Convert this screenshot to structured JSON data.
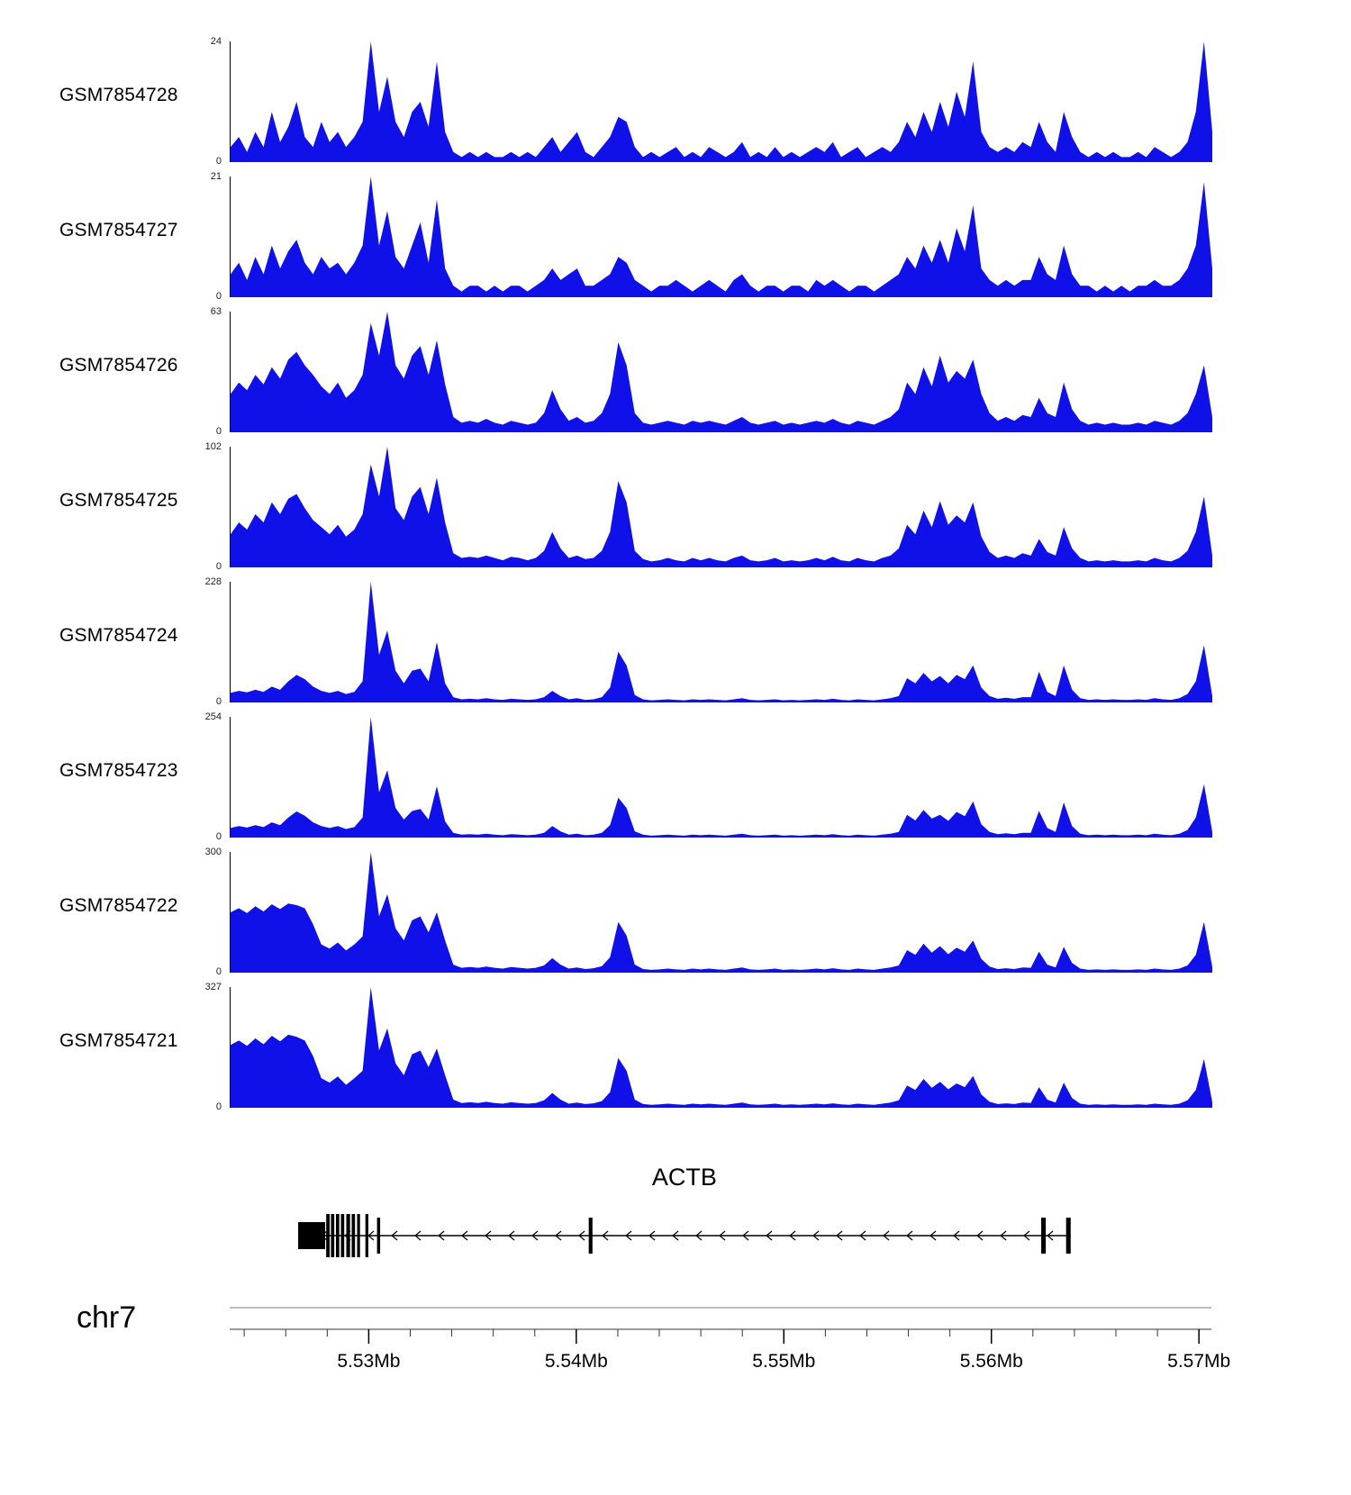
{
  "chart_data": {
    "type": "area",
    "title": "",
    "description": "Genome browser coverage tracks over the ACTB locus on chr7",
    "signal_color": "#1010e8",
    "region": {
      "chrom": "chr7",
      "start_mb": 5.5233,
      "end_mb": 5.5706
    },
    "x_axis": {
      "tick_labels": [
        "5.53Mb",
        "5.54Mb",
        "5.55Mb",
        "5.56Mb",
        "5.57Mb"
      ],
      "tick_positions_mb": [
        5.53,
        5.54,
        5.55,
        5.56,
        5.57
      ],
      "minor_tick_interval_mb": 0.002
    },
    "tracks": [
      {
        "label": "GSM7854728",
        "ymin_label": "0",
        "ymax": 24,
        "values": [
          3,
          5,
          2,
          6,
          3,
          10,
          4,
          7,
          12,
          5,
          3,
          8,
          4,
          6,
          3,
          5,
          8,
          24,
          10,
          17,
          8,
          5,
          10,
          12,
          7,
          20,
          6,
          2,
          1,
          2,
          1,
          2,
          1,
          1,
          2,
          1,
          2,
          1,
          3,
          5,
          2,
          4,
          6,
          2,
          1,
          3,
          5,
          9,
          8,
          3,
          1,
          2,
          1,
          2,
          3,
          1,
          2,
          1,
          3,
          2,
          1,
          2,
          4,
          1,
          2,
          1,
          3,
          1,
          2,
          1,
          2,
          3,
          2,
          4,
          1,
          2,
          3,
          1,
          2,
          3,
          2,
          4,
          8,
          5,
          10,
          6,
          12,
          7,
          14,
          9,
          20,
          6,
          3,
          2,
          3,
          2,
          4,
          3,
          8,
          4,
          2,
          10,
          5,
          2,
          1,
          2,
          1,
          2,
          1,
          1,
          2,
          1,
          3,
          2,
          1,
          2,
          4,
          10,
          24,
          6
        ]
      },
      {
        "label": "GSM7854727",
        "ymin_label": "0",
        "ymax": 21,
        "values": [
          4,
          6,
          3,
          7,
          4,
          9,
          5,
          8,
          10,
          6,
          4,
          7,
          5,
          6,
          4,
          6,
          9,
          21,
          9,
          15,
          7,
          5,
          9,
          13,
          6,
          17,
          5,
          2,
          1,
          2,
          2,
          1,
          2,
          1,
          2,
          2,
          1,
          2,
          3,
          5,
          3,
          4,
          5,
          2,
          2,
          3,
          4,
          7,
          6,
          3,
          2,
          1,
          2,
          2,
          3,
          2,
          1,
          2,
          3,
          2,
          1,
          3,
          4,
          2,
          1,
          2,
          2,
          1,
          2,
          2,
          1,
          3,
          2,
          3,
          2,
          1,
          2,
          2,
          1,
          2,
          3,
          4,
          7,
          5,
          9,
          6,
          10,
          6,
          12,
          8,
          16,
          5,
          3,
          2,
          3,
          2,
          3,
          3,
          7,
          4,
          3,
          9,
          4,
          2,
          2,
          1,
          2,
          1,
          2,
          1,
          2,
          2,
          3,
          2,
          2,
          3,
          5,
          9,
          20,
          5
        ]
      },
      {
        "label": "GSM7854726",
        "ymin_label": "0",
        "ymax": 63,
        "values": [
          20,
          26,
          22,
          30,
          25,
          34,
          28,
          38,
          42,
          35,
          30,
          24,
          20,
          26,
          18,
          22,
          30,
          57,
          40,
          63,
          35,
          28,
          40,
          45,
          30,
          48,
          25,
          8,
          5,
          6,
          5,
          7,
          5,
          4,
          6,
          5,
          4,
          5,
          10,
          22,
          12,
          6,
          8,
          5,
          6,
          10,
          20,
          47,
          35,
          10,
          5,
          4,
          5,
          6,
          5,
          4,
          6,
          5,
          6,
          5,
          4,
          6,
          8,
          5,
          4,
          5,
          6,
          4,
          5,
          4,
          5,
          6,
          5,
          7,
          5,
          4,
          6,
          5,
          4,
          6,
          8,
          12,
          26,
          20,
          34,
          24,
          40,
          26,
          32,
          28,
          38,
          20,
          10,
          6,
          8,
          6,
          9,
          8,
          18,
          10,
          8,
          26,
          12,
          6,
          4,
          5,
          4,
          5,
          4,
          4,
          5,
          4,
          6,
          5,
          4,
          6,
          10,
          20,
          35,
          8
        ]
      },
      {
        "label": "GSM7854725",
        "ymin_label": "0",
        "ymax": 102,
        "values": [
          28,
          38,
          32,
          45,
          38,
          55,
          45,
          58,
          62,
          50,
          40,
          34,
          28,
          36,
          26,
          32,
          45,
          87,
          60,
          102,
          50,
          40,
          60,
          68,
          45,
          76,
          38,
          12,
          8,
          9,
          8,
          10,
          8,
          6,
          9,
          8,
          6,
          8,
          14,
          30,
          16,
          8,
          10,
          7,
          8,
          14,
          30,
          73,
          55,
          14,
          7,
          5,
          6,
          8,
          6,
          5,
          8,
          6,
          8,
          6,
          5,
          8,
          10,
          6,
          5,
          6,
          8,
          5,
          6,
          5,
          6,
          8,
          6,
          9,
          6,
          5,
          8,
          6,
          5,
          8,
          10,
          16,
          36,
          28,
          48,
          34,
          56,
          36,
          44,
          38,
          55,
          26,
          13,
          8,
          10,
          8,
          12,
          10,
          24,
          13,
          10,
          34,
          16,
          8,
          5,
          6,
          5,
          6,
          5,
          5,
          6,
          5,
          8,
          6,
          5,
          8,
          14,
          30,
          60,
          10
        ]
      },
      {
        "label": "GSM7854724",
        "ymin_label": "0",
        "ymax": 228,
        "values": [
          18,
          22,
          19,
          24,
          20,
          30,
          24,
          40,
          52,
          44,
          30,
          22,
          18,
          22,
          16,
          20,
          40,
          228,
          90,
          136,
          60,
          36,
          60,
          64,
          40,
          114,
          36,
          10,
          6,
          7,
          6,
          8,
          6,
          5,
          7,
          6,
          5,
          6,
          10,
          22,
          12,
          6,
          8,
          5,
          6,
          10,
          28,
          96,
          70,
          14,
          6,
          4,
          5,
          6,
          5,
          4,
          6,
          5,
          6,
          5,
          4,
          6,
          8,
          5,
          4,
          5,
          6,
          4,
          5,
          4,
          5,
          6,
          5,
          7,
          5,
          4,
          6,
          5,
          4,
          6,
          8,
          12,
          46,
          36,
          56,
          40,
          50,
          36,
          52,
          44,
          70,
          28,
          12,
          7,
          9,
          7,
          10,
          10,
          58,
          20,
          12,
          70,
          24,
          8,
          5,
          6,
          5,
          6,
          5,
          5,
          6,
          5,
          8,
          6,
          5,
          8,
          16,
          40,
          108,
          12
        ]
      },
      {
        "label": "GSM7854723",
        "ymin_label": "0",
        "ymax": 254,
        "values": [
          20,
          24,
          21,
          26,
          22,
          32,
          26,
          42,
          55,
          46,
          32,
          24,
          20,
          24,
          18,
          22,
          42,
          254,
          95,
          142,
          62,
          38,
          56,
          60,
          38,
          108,
          34,
          10,
          6,
          7,
          6,
          8,
          6,
          5,
          7,
          6,
          5,
          6,
          10,
          24,
          13,
          6,
          8,
          5,
          6,
          10,
          26,
          84,
          62,
          13,
          6,
          4,
          5,
          6,
          5,
          4,
          6,
          5,
          6,
          5,
          4,
          6,
          8,
          5,
          4,
          5,
          6,
          4,
          5,
          4,
          5,
          6,
          5,
          7,
          5,
          4,
          6,
          5,
          4,
          6,
          8,
          12,
          48,
          36,
          58,
          40,
          48,
          35,
          54,
          45,
          76,
          28,
          12,
          7,
          9,
          7,
          10,
          10,
          56,
          20,
          12,
          74,
          24,
          8,
          5,
          6,
          5,
          6,
          5,
          5,
          6,
          5,
          8,
          6,
          5,
          8,
          16,
          42,
          112,
          12
        ]
      },
      {
        "label": "GSM7854722",
        "ymin_label": "0",
        "ymax": 300,
        "values": [
          150,
          160,
          148,
          165,
          152,
          170,
          158,
          172,
          168,
          160,
          120,
          70,
          60,
          75,
          55,
          70,
          90,
          300,
          140,
          195,
          110,
          80,
          130,
          140,
          100,
          150,
          80,
          20,
          12,
          14,
          12,
          15,
          12,
          10,
          14,
          12,
          10,
          12,
          18,
          36,
          20,
          10,
          13,
          9,
          11,
          16,
          38,
          126,
          92,
          20,
          9,
          7,
          8,
          10,
          8,
          7,
          10,
          8,
          10,
          8,
          7,
          10,
          13,
          8,
          7,
          8,
          10,
          7,
          8,
          7,
          8,
          10,
          8,
          11,
          8,
          7,
          10,
          8,
          7,
          10,
          13,
          18,
          56,
          44,
          72,
          50,
          66,
          46,
          62,
          52,
          80,
          34,
          15,
          9,
          11,
          9,
          13,
          12,
          52,
          20,
          13,
          64,
          24,
          10,
          7,
          8,
          7,
          8,
          7,
          7,
          8,
          7,
          10,
          8,
          7,
          10,
          18,
          44,
          126,
          14
        ]
      },
      {
        "label": "GSM7854721",
        "ymin_label": "0",
        "ymax": 327,
        "values": [
          170,
          182,
          168,
          188,
          172,
          195,
          180,
          198,
          192,
          182,
          140,
          80,
          68,
          85,
          62,
          80,
          100,
          327,
          155,
          215,
          120,
          88,
          145,
          155,
          110,
          160,
          88,
          22,
          13,
          15,
          13,
          16,
          13,
          11,
          15,
          13,
          11,
          13,
          20,
          40,
          22,
          11,
          14,
          10,
          12,
          18,
          42,
          135,
          100,
          22,
          10,
          8,
          9,
          11,
          9,
          8,
          11,
          9,
          11,
          9,
          8,
          11,
          14,
          9,
          8,
          9,
          11,
          8,
          9,
          8,
          9,
          11,
          9,
          12,
          9,
          8,
          11,
          9,
          8,
          11,
          14,
          20,
          60,
          48,
          78,
          54,
          70,
          50,
          66,
          56,
          86,
          36,
          16,
          10,
          12,
          10,
          14,
          13,
          56,
          22,
          14,
          68,
          26,
          11,
          8,
          9,
          8,
          9,
          8,
          8,
          9,
          8,
          11,
          9,
          8,
          11,
          20,
          48,
          132,
          15
        ]
      }
    ],
    "gene_track": {
      "gene_label": "ACTB",
      "strand": "-",
      "chrom_label": "chr7",
      "gene_start_mb": 5.5266,
      "gene_end_mb": 5.56382,
      "exons": [
        {
          "start_mb": 5.5266,
          "end_mb": 5.5279,
          "height": 30
        },
        {
          "start_mb": 5.52795,
          "end_mb": 5.52812,
          "height": 48
        },
        {
          "start_mb": 5.52818,
          "end_mb": 5.52834,
          "height": 48
        },
        {
          "start_mb": 5.52842,
          "end_mb": 5.52858,
          "height": 48
        },
        {
          "start_mb": 5.52866,
          "end_mb": 5.52882,
          "height": 48
        },
        {
          "start_mb": 5.52892,
          "end_mb": 5.5291,
          "height": 48
        },
        {
          "start_mb": 5.52918,
          "end_mb": 5.52934,
          "height": 48
        },
        {
          "start_mb": 5.52944,
          "end_mb": 5.52958,
          "height": 48
        },
        {
          "start_mb": 5.52984,
          "end_mb": 5.52998,
          "height": 48
        },
        {
          "start_mb": 5.5304,
          "end_mb": 5.53055,
          "height": 40
        },
        {
          "start_mb": 5.5406,
          "end_mb": 5.54078,
          "height": 40
        },
        {
          "start_mb": 5.5624,
          "end_mb": 5.56262,
          "height": 40
        },
        {
          "start_mb": 5.5636,
          "end_mb": 5.56382,
          "height": 40
        }
      ]
    }
  }
}
